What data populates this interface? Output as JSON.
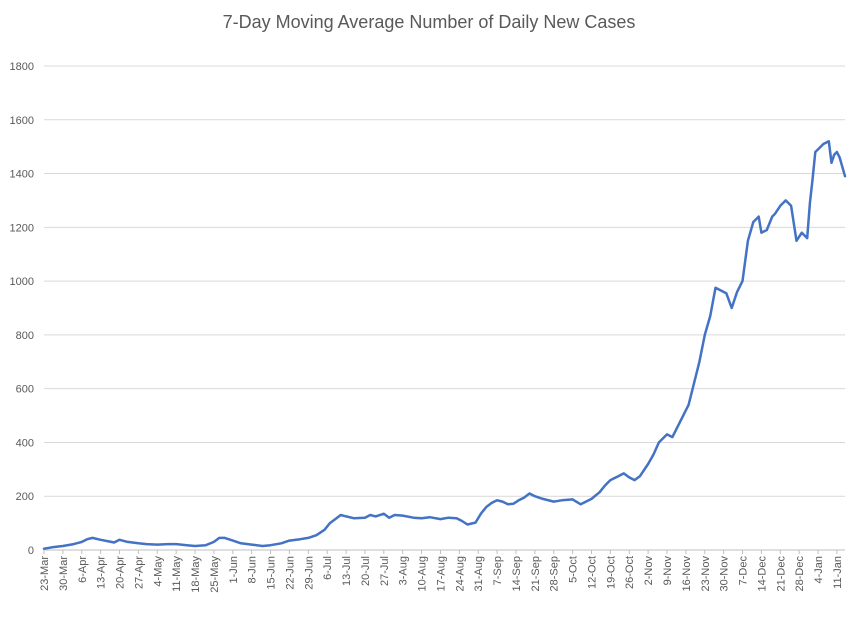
{
  "chart_data": {
    "type": "line",
    "title": "7-Day Moving Average Number of Daily New Cases",
    "xlabel": "",
    "ylabel": "",
    "ylim": [
      0,
      1800
    ],
    "yticks": [
      0,
      200,
      400,
      600,
      800,
      1000,
      1200,
      1400,
      1600,
      1800
    ],
    "grid": true,
    "color": "#4472C4",
    "x_range": [
      "23-Mar",
      "14-Jan"
    ],
    "xtick_labels": [
      "23-Mar",
      "30-Mar",
      "6-Apr",
      "13-Apr",
      "20-Apr",
      "27-Apr",
      "4-May",
      "11-May",
      "18-May",
      "25-May",
      "1-Jun",
      "8-Jun",
      "15-Jun",
      "22-Jun",
      "29-Jun",
      "6-Jul",
      "13-Jul",
      "20-Jul",
      "27-Jul",
      "3-Aug",
      "10-Aug",
      "17-Aug",
      "24-Aug",
      "31-Aug",
      "7-Sep",
      "14-Sep",
      "21-Sep",
      "28-Sep",
      "5-Oct",
      "12-Oct",
      "19-Oct",
      "26-Oct",
      "2-Nov",
      "9-Nov",
      "16-Nov",
      "23-Nov",
      "30-Nov",
      "7-Dec",
      "14-Dec",
      "21-Dec",
      "28-Dec",
      "4-Jan",
      "11-Jan"
    ],
    "series": [
      {
        "x": [
          "23-Mar",
          "26-Mar",
          "30-Mar",
          "3-Apr",
          "6-Apr",
          "8-Apr",
          "10-Apr",
          "13-Apr",
          "16-Apr",
          "18-Apr",
          "20-Apr",
          "23-Apr",
          "27-Apr",
          "30-Apr",
          "4-May",
          "8-May",
          "11-May",
          "15-May",
          "18-May",
          "22-May",
          "25-May",
          "27-May",
          "29-May",
          "1-Jun",
          "4-Jun",
          "8-Jun",
          "12-Jun",
          "15-Jun",
          "19-Jun",
          "22-Jun",
          "26-Jun",
          "29-Jun",
          "2-Jul",
          "5-Jul",
          "7-Jul",
          "9-Jul",
          "11-Jul",
          "13-Jul",
          "16-Jul",
          "20-Jul",
          "22-Jul",
          "24-Jul",
          "27-Jul",
          "29-Jul",
          "31-Jul",
          "3-Aug",
          "7-Aug",
          "10-Aug",
          "13-Aug",
          "17-Aug",
          "20-Aug",
          "23-Aug",
          "25-Aug",
          "27-Aug",
          "30-Aug",
          "1-Sep",
          "3-Sep",
          "5-Sep",
          "7-Sep",
          "9-Sep",
          "11-Sep",
          "13-Sep",
          "15-Sep",
          "17-Sep",
          "19-Sep",
          "21-Sep",
          "24-Sep",
          "28-Sep",
          "1-Oct",
          "5-Oct",
          "8-Oct",
          "12-Oct",
          "15-Oct",
          "17-Oct",
          "19-Oct",
          "22-Oct",
          "24-Oct",
          "26-Oct",
          "28-Oct",
          "30-Oct",
          "2-Nov",
          "4-Nov",
          "6-Nov",
          "9-Nov",
          "11-Nov",
          "13-Nov",
          "15-Nov",
          "17-Nov",
          "19-Nov",
          "21-Nov",
          "23-Nov",
          "25-Nov",
          "27-Nov",
          "29-Nov",
          "1-Dec",
          "3-Dec",
          "5-Dec",
          "7-Dec",
          "9-Dec",
          "11-Dec",
          "13-Dec",
          "14-Dec",
          "16-Dec",
          "18-Dec",
          "19-Dec",
          "21-Dec",
          "23-Dec",
          "25-Dec",
          "27-Dec",
          "29-Dec",
          "31-Dec",
          "1-Jan",
          "2-Jan",
          "3-Jan",
          "4-Jan",
          "6-Jan",
          "8-Jan",
          "9-Jan",
          "10-Jan",
          "11-Jan",
          "12-Jan",
          "14-Jan"
        ],
        "values": [
          5,
          10,
          15,
          22,
          30,
          40,
          45,
          38,
          32,
          28,
          38,
          30,
          25,
          22,
          20,
          22,
          22,
          18,
          15,
          18,
          30,
          45,
          45,
          35,
          25,
          20,
          15,
          18,
          25,
          35,
          40,
          45,
          55,
          75,
          100,
          115,
          130,
          125,
          118,
          120,
          130,
          125,
          135,
          120,
          130,
          128,
          120,
          118,
          122,
          115,
          120,
          118,
          108,
          95,
          102,
          135,
          160,
          175,
          185,
          180,
          170,
          172,
          185,
          195,
          210,
          200,
          190,
          180,
          185,
          188,
          170,
          190,
          215,
          240,
          260,
          275,
          285,
          270,
          260,
          275,
          320,
          355,
          400,
          430,
          420,
          460,
          500,
          540,
          620,
          700,
          800,
          870,
          975,
          965,
          955,
          900,
          960,
          1000,
          1150,
          1220,
          1240,
          1180,
          1190,
          1240,
          1250,
          1280,
          1300,
          1280,
          1150,
          1180,
          1160,
          1290,
          1380,
          1480,
          1490,
          1510,
          1520,
          1440,
          1470,
          1480,
          1460,
          1390
        ]
      }
    ]
  }
}
